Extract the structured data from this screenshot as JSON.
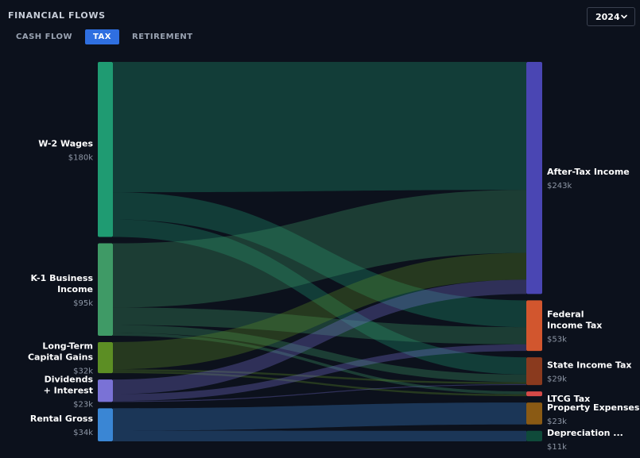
{
  "header": {
    "title": "FINANCIAL FLOWS",
    "tabs": [
      {
        "label": "CASH FLOW",
        "active": false
      },
      {
        "label": "TAX",
        "active": true
      },
      {
        "label": "RETIREMENT",
        "active": false
      }
    ],
    "year": "2024"
  },
  "chart_data": {
    "type": "sankey",
    "sources": [
      {
        "id": "w2",
        "name_lines": [
          "W-2 Wages"
        ],
        "value_label": "$180k",
        "value": 180,
        "color": "#1f9b72"
      },
      {
        "id": "k1",
        "name_lines": [
          "K-1 Business",
          "Income"
        ],
        "value_label": "$95k",
        "value": 95,
        "color": "#3f9a66"
      },
      {
        "id": "ltcg_in",
        "name_lines": [
          "Long-Term",
          "Capital Gains"
        ],
        "value_label": "$32k",
        "value": 32,
        "color": "#5c8e24"
      },
      {
        "id": "div",
        "name_lines": [
          "Dividends",
          "+ Interest"
        ],
        "value_label": "$23k",
        "value": 23,
        "color": "#7a72d6"
      },
      {
        "id": "rent",
        "name_lines": [
          "Rental Gross"
        ],
        "value_label": "$34k",
        "value": 34,
        "color": "#3a86d4"
      }
    ],
    "targets": [
      {
        "id": "after",
        "name_lines": [
          "After-Tax Income"
        ],
        "value_label": "$243k",
        "value": 243,
        "color": "#4a46b3"
      },
      {
        "id": "fed",
        "name_lines": [
          "Federal",
          "Income Tax"
        ],
        "value_label": "$53k",
        "value": 53,
        "color": "#d2562e"
      },
      {
        "id": "state",
        "name_lines": [
          "State Income Tax"
        ],
        "value_label": "$29k",
        "value": 29,
        "color": "#8a3a1e"
      },
      {
        "id": "ltcg",
        "name_lines": [
          "LTCG Tax"
        ],
        "value_label": "",
        "value": 5,
        "color": "#d64a48"
      },
      {
        "id": "prop",
        "name_lines": [
          "Property Expenses"
        ],
        "value_label": "$23k",
        "value": 23,
        "color": "#8a5a14"
      },
      {
        "id": "dep",
        "name_lines": [
          "Depreciation ..."
        ],
        "value_label": "$11k",
        "value": 11,
        "color": "#0f4a3a"
      }
    ],
    "links": [
      {
        "source": "w2",
        "target": "after",
        "value": 134
      },
      {
        "source": "w2",
        "target": "fed",
        "value": 28
      },
      {
        "source": "w2",
        "target": "state",
        "value": 18
      },
      {
        "source": "k1",
        "target": "after",
        "value": 66
      },
      {
        "source": "k1",
        "target": "fed",
        "value": 18
      },
      {
        "source": "k1",
        "target": "state",
        "value": 8
      },
      {
        "source": "k1",
        "target": "ltcg",
        "value": 3
      },
      {
        "source": "ltcg_in",
        "target": "after",
        "value": 28
      },
      {
        "source": "ltcg_in",
        "target": "state",
        "value": 2
      },
      {
        "source": "ltcg_in",
        "target": "ltcg",
        "value": 2
      },
      {
        "source": "div",
        "target": "after",
        "value": 15
      },
      {
        "source": "div",
        "target": "fed",
        "value": 7
      },
      {
        "source": "div",
        "target": "state",
        "value": 1
      },
      {
        "source": "rent",
        "target": "prop",
        "value": 23
      },
      {
        "source": "rent",
        "target": "dep",
        "value": 11
      }
    ]
  }
}
